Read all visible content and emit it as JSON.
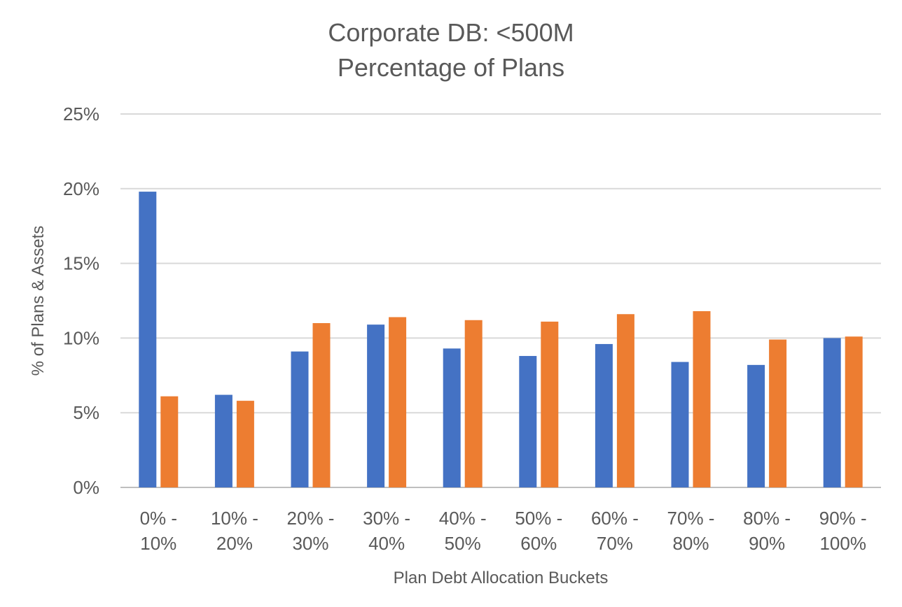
{
  "chart_data": {
    "type": "bar",
    "title_lines": [
      "Corporate DB: <500M",
      "Percentage of Plans"
    ],
    "xlabel": "Plan Debt Allocation Buckets",
    "ylabel": "% of Plans & Assets",
    "ylim": [
      0,
      25
    ],
    "yticks": [
      "0%",
      "5%",
      "10%",
      "15%",
      "20%",
      "25%"
    ],
    "grid": true,
    "legend": "none",
    "categories": [
      [
        "0% -",
        "10%"
      ],
      [
        "10% -",
        "20%"
      ],
      [
        "20% -",
        "30%"
      ],
      [
        "30% -",
        "40%"
      ],
      [
        "40% -",
        "50%"
      ],
      [
        "50% -",
        "60%"
      ],
      [
        "60% -",
        "70%"
      ],
      [
        "70% -",
        "80%"
      ],
      [
        "80% -",
        "90%"
      ],
      [
        "90% -",
        "100%"
      ]
    ],
    "series": [
      {
        "color": "#4472C4",
        "values": [
          19.8,
          6.2,
          9.1,
          10.9,
          9.3,
          8.8,
          9.6,
          8.4,
          8.2,
          10.0
        ]
      },
      {
        "color": "#ED7D31",
        "values": [
          6.1,
          5.8,
          11.0,
          11.4,
          11.2,
          11.1,
          11.6,
          11.8,
          9.9,
          10.1
        ]
      }
    ]
  }
}
